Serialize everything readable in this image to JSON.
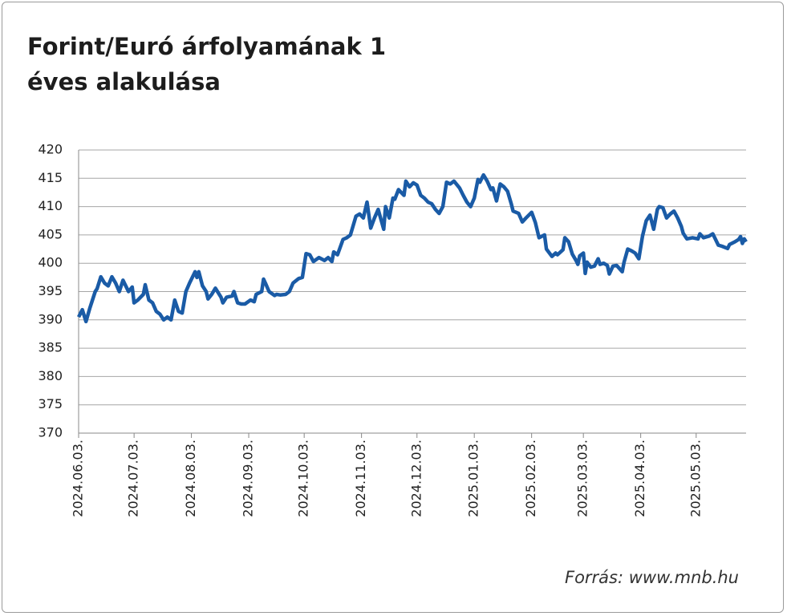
{
  "chart_data": {
    "type": "line",
    "title": "Forint/Euró árfolyamának 1 éves alakulása",
    "source": "Forrás: www.mnb.hu",
    "color": "#1a5ba6",
    "grid": true,
    "ylim": [
      370,
      420
    ],
    "yticks": [
      370,
      375,
      380,
      385,
      390,
      395,
      400,
      405,
      410,
      415,
      420
    ],
    "xlim": [
      "2024.06.03.",
      "2025.05.30."
    ],
    "xticks": [
      "2024.06.03.",
      "2024.07.03.",
      "2024.08.03.",
      "2024.09.03.",
      "2024.10.03.",
      "2024.11.03.",
      "2024.12.03.",
      "2025.01.03.",
      "2025.02.03.",
      "2025.03.03.",
      "2025.04.03.",
      "2025.05.03."
    ],
    "x": [
      "2024.06.03.",
      "2024.06.05.",
      "2024.06.07.",
      "2024.06.09.",
      "2024.06.12.",
      "2024.06.13.",
      "2024.06.15.",
      "2024.06.17.",
      "2024.06.19.",
      "2024.06.21.",
      "2024.06.23.",
      "2024.06.25.",
      "2024.06.27.",
      "2024.06.30.",
      "2024.07.02.",
      "2024.07.03.",
      "2024.07.05.",
      "2024.07.08.",
      "2024.07.09.",
      "2024.07.11.",
      "2024.07.13.",
      "2024.07.15.",
      "2024.07.17.",
      "2024.07.19.",
      "2024.07.21.",
      "2024.07.23.",
      "2024.07.25.",
      "2024.07.27.",
      "2024.07.29.",
      "2024.07.31.",
      "2024.08.02.",
      "2024.08.05.",
      "2024.08.06.",
      "2024.08.07.",
      "2024.08.09.",
      "2024.08.11.",
      "2024.08.12.",
      "2024.08.14.",
      "2024.08.16.",
      "2024.08.19.",
      "2024.08.20.",
      "2024.08.22.",
      "2024.08.25.",
      "2024.08.26.",
      "2024.08.28.",
      "2024.08.30.",
      "2024.09.01.",
      "2024.09.04.",
      "2024.09.06.",
      "2024.09.07.",
      "2024.09.10.",
      "2024.09.11.",
      "2024.09.12.",
      "2024.09.14.",
      "2024.09.17.",
      "2024.09.18.",
      "2024.09.20.",
      "2024.09.23.",
      "2024.09.25.",
      "2024.09.27.",
      "2024.09.30.",
      "2024.10.02.",
      "2024.10.04.",
      "2024.10.06.",
      "2024.10.08.",
      "2024.10.11.",
      "2024.10.14.",
      "2024.10.16.",
      "2024.10.18.",
      "2024.10.19.",
      "2024.10.21.",
      "2024.10.24.",
      "2024.10.26.",
      "2024.10.28.",
      "2024.10.31.",
      "2024.11.02.",
      "2024.11.04.",
      "2024.11.06.",
      "2024.11.08.",
      "2024.11.10.",
      "2024.11.12.",
      "2024.11.15.",
      "2024.11.16.",
      "2024.11.18.",
      "2024.11.20.",
      "2024.11.21.",
      "2024.11.23.",
      "2024.11.26.",
      "2024.11.27.",
      "2024.11.29.",
      "2024.12.01.",
      "2024.12.03.",
      "2024.12.05.",
      "2024.12.07.",
      "2024.12.09.",
      "2024.12.11.",
      "2024.12.13.",
      "2024.12.15.",
      "2024.12.17.",
      "2024.12.19.",
      "2024.12.21.",
      "2024.12.23.",
      "2024.12.26.",
      "2024.12.28.",
      "2024.12.30.",
      "2025.01.01.",
      "2025.01.03.",
      "2025.01.05.",
      "2025.01.06.",
      "2025.01.08.",
      "2025.01.10.",
      "2025.01.12.",
      "2025.01.13.",
      "2025.01.15.",
      "2025.01.17.",
      "2025.01.19.",
      "2025.01.21.",
      "2025.01.23.",
      "2025.01.24.",
      "2025.01.27.",
      "2025.01.29.",
      "2025.01.31.",
      "2025.02.03.",
      "2025.02.05.",
      "2025.02.07.",
      "2025.02.10.",
      "2025.02.11.",
      "2025.02.14.",
      "2025.02.16.",
      "2025.02.17.",
      "2025.02.20.",
      "2025.02.21.",
      "2025.02.23.",
      "2025.02.25.",
      "2025.02.27.",
      "2025.02.28.",
      "2025.03.01.",
      "2025.03.03.",
      "2025.03.04.",
      "2025.03.05.",
      "2025.03.07.",
      "2025.03.09.",
      "2025.03.11.",
      "2025.03.12.",
      "2025.03.14.",
      "2025.03.16.",
      "2025.03.17.",
      "2025.03.19.",
      "2025.03.21.",
      "2025.03.24.",
      "2025.03.25.",
      "2025.03.27.",
      "2025.03.29.",
      "2025.03.31.",
      "2025.04.02.",
      "2025.04.04.",
      "2025.04.06.",
      "2025.04.08.",
      "2025.04.10.",
      "2025.04.12.",
      "2025.04.13.",
      "2025.04.15.",
      "2025.04.17.",
      "2025.04.19.",
      "2025.04.21.",
      "2025.04.23.",
      "2025.04.25.",
      "2025.04.26.",
      "2025.04.28.",
      "2025.05.01.",
      "2025.05.04.",
      "2025.05.05.",
      "2025.05.07.",
      "2025.05.10.",
      "2025.05.12.",
      "2025.05.15.",
      "2025.05.17.",
      "2025.05.20.",
      "2025.05.21.",
      "2025.05.24.",
      "2025.05.26.",
      "2025.05.27.",
      "2025.05.28.",
      "2025.05.29.",
      "2025.05.30."
    ],
    "values": [
      390.5,
      391.8,
      389.7,
      392,
      395,
      395.5,
      397.6,
      396.5,
      396,
      397.6,
      396.5,
      395,
      397,
      395,
      395.8,
      393,
      393.5,
      394.5,
      396.2,
      393.5,
      393,
      391.5,
      391,
      390,
      390.5,
      390,
      393.5,
      391.5,
      391.2,
      395,
      396.5,
      398.5,
      397.5,
      398.5,
      396,
      395,
      393.7,
      394.5,
      395.6,
      394,
      393,
      394,
      394.2,
      395,
      393,
      392.8,
      392.8,
      393.5,
      393.2,
      394.5,
      395,
      397.2,
      396.5,
      395,
      394.3,
      394.5,
      394.4,
      394.5,
      395,
      396.5,
      397.3,
      397.5,
      401.7,
      401.5,
      400.3,
      401,
      400.5,
      401,
      400.3,
      402,
      401.5,
      404.2,
      404.5,
      405,
      408.3,
      408.7,
      408,
      410.8,
      406.2,
      408,
      409.5,
      406,
      410,
      408,
      411.5,
      411.3,
      413,
      412,
      414.5,
      413.5,
      414.2,
      413.8,
      412,
      411.5,
      410.8,
      410.5,
      409.5,
      408.8,
      410,
      414.3,
      414,
      414.5,
      413.3,
      412,
      410.8,
      410,
      411.5,
      414.8,
      414.3,
      415.6,
      414.5,
      413,
      413.3,
      411,
      414,
      413.5,
      412.7,
      410.5,
      409.2,
      408.8,
      407.3,
      408,
      409,
      407.2,
      404.5,
      405,
      402.5,
      401.2,
      401.8,
      401.5,
      402.4,
      404.5,
      403.8,
      401.6,
      400.5,
      399.8,
      401.3,
      401.8,
      398.2,
      400.2,
      399.3,
      399.5,
      400.8,
      399.8,
      400,
      399.6,
      398.1,
      399.5,
      399.6,
      398.5,
      400.2,
      402.5,
      402.2,
      401.8,
      400.8,
      404.8,
      407.5,
      408.5,
      406,
      409.5,
      410,
      409.8,
      408,
      408.7,
      409.2,
      408,
      406.5,
      405.3,
      404.3,
      404.5,
      404.3,
      405.2,
      404.5,
      404.8,
      405.2,
      403.2,
      403,
      402.6,
      403.3,
      403.8,
      404.2,
      404.7,
      403.5,
      404.3,
      403.8
    ]
  }
}
